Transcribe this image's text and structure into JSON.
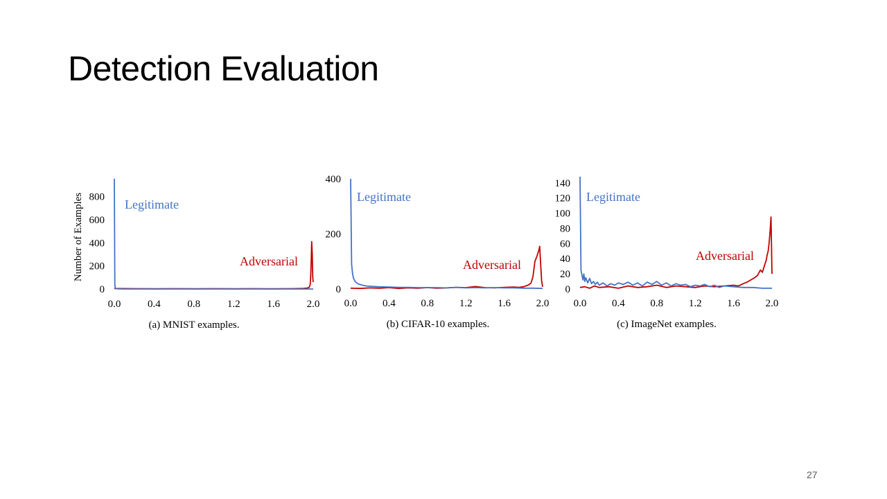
{
  "slide": {
    "title": "Detection Evaluation",
    "page_number": "27"
  },
  "chart_data": [
    {
      "type": "line",
      "caption": "(a) MNIST examples.",
      "ylabel": "Number of Examples",
      "xlabel": "",
      "xlim": [
        0.0,
        2.0
      ],
      "ylim": [
        0,
        960
      ],
      "x_ticks": [
        "0.0",
        "0.4",
        "0.8",
        "1.2",
        "1.6",
        "2.0"
      ],
      "y_ticks": [
        "0",
        "200",
        "400",
        "600",
        "800"
      ],
      "y_tick_values": [
        0,
        200,
        400,
        600,
        800
      ],
      "annotations": [
        {
          "text": "Legitimate",
          "series": "Legitimate"
        },
        {
          "text": "Adversarial",
          "series": "Adversarial"
        }
      ],
      "series": [
        {
          "name": "Legitimate",
          "color": "#4472c4",
          "x": [
            0.0,
            0.005,
            0.01,
            0.02,
            0.04,
            0.1,
            0.4,
            0.8,
            1.2,
            1.6,
            1.9,
            2.0
          ],
          "y": [
            955,
            40,
            8,
            3,
            1,
            0,
            0,
            0,
            0,
            0,
            0,
            0
          ]
        },
        {
          "name": "Adversarial",
          "color": "#c00000",
          "x": [
            0.0,
            0.2,
            0.4,
            0.6,
            0.8,
            1.0,
            1.2,
            1.4,
            1.6,
            1.8,
            1.9,
            1.94,
            1.96,
            1.97,
            1.975,
            1.98,
            1.985,
            1.99,
            1.995,
            2.0
          ],
          "y": [
            4,
            3,
            2,
            3,
            2,
            3,
            2,
            3,
            2,
            3,
            5,
            8,
            15,
            40,
            120,
            240,
            410,
            300,
            100,
            60
          ]
        }
      ]
    },
    {
      "type": "line",
      "caption": "(b) CIFAR-10 examples.",
      "ylabel": "",
      "xlabel": "",
      "xlim": [
        0.0,
        2.0
      ],
      "ylim": [
        0,
        400
      ],
      "x_ticks": [
        "0.0",
        "0.4",
        "0.8",
        "1.2",
        "1.6",
        "2.0"
      ],
      "y_ticks": [
        "0",
        "200",
        "400"
      ],
      "y_tick_values": [
        0,
        200,
        400
      ],
      "annotations": [
        {
          "text": "Legitimate",
          "series": "Legitimate"
        },
        {
          "text": "Adversarial",
          "series": "Adversarial"
        }
      ],
      "series": [
        {
          "name": "Legitimate",
          "color": "#4472c4",
          "x": [
            0.0,
            0.01,
            0.02,
            0.03,
            0.05,
            0.08,
            0.12,
            0.16,
            0.2,
            0.25,
            0.3,
            0.4,
            0.5,
            0.6,
            0.7,
            0.8,
            0.9,
            1.0,
            1.1,
            1.2,
            1.3,
            1.4,
            1.5,
            1.6,
            1.7,
            1.8,
            1.9,
            2.0
          ],
          "y": [
            400,
            90,
            55,
            38,
            26,
            18,
            14,
            11,
            10,
            9,
            8,
            7,
            6,
            6,
            5,
            5,
            5,
            4,
            6,
            4,
            5,
            4,
            5,
            4,
            4,
            3,
            3,
            2
          ]
        },
        {
          "name": "Adversarial",
          "color": "#c00000",
          "x": [
            0.0,
            0.1,
            0.2,
            0.3,
            0.4,
            0.5,
            0.6,
            0.7,
            0.8,
            0.9,
            1.0,
            1.1,
            1.2,
            1.3,
            1.4,
            1.5,
            1.6,
            1.7,
            1.75,
            1.8,
            1.85,
            1.88,
            1.9,
            1.92,
            1.94,
            1.96,
            1.97,
            1.98,
            1.99,
            2.0
          ],
          "y": [
            3,
            2,
            4,
            3,
            5,
            2,
            4,
            3,
            5,
            3,
            4,
            6,
            5,
            9,
            5,
            4,
            6,
            7,
            6,
            8,
            14,
            22,
            45,
            100,
            118,
            140,
            155,
            90,
            30,
            8
          ]
        }
      ]
    },
    {
      "type": "line",
      "caption": "(c) ImageNet examples.",
      "ylabel": "",
      "xlabel": "",
      "xlim": [
        0.0,
        2.0
      ],
      "ylim": [
        0,
        148
      ],
      "x_ticks": [
        "0.0",
        "0.4",
        "0.8",
        "1.2",
        "1.6",
        "2.0"
      ],
      "y_ticks": [
        "0",
        "20",
        "40",
        "60",
        "80",
        "100",
        "120",
        "140"
      ],
      "y_tick_values": [
        0,
        20,
        40,
        60,
        80,
        100,
        120,
        140
      ],
      "annotations": [
        {
          "text": "Legitimate",
          "series": "Legitimate"
        },
        {
          "text": "Adversarial",
          "series": "Adversarial"
        }
      ],
      "series": [
        {
          "name": "Legitimate",
          "color": "#4472c4",
          "x": [
            0.0,
            0.01,
            0.02,
            0.03,
            0.04,
            0.05,
            0.06,
            0.08,
            0.1,
            0.12,
            0.14,
            0.16,
            0.18,
            0.2,
            0.24,
            0.28,
            0.32,
            0.36,
            0.4,
            0.45,
            0.5,
            0.55,
            0.6,
            0.65,
            0.7,
            0.75,
            0.8,
            0.85,
            0.9,
            0.95,
            1.0,
            1.05,
            1.1,
            1.15,
            1.2,
            1.25,
            1.3,
            1.35,
            1.4,
            1.45,
            1.5,
            1.6,
            1.7,
            1.8,
            1.9,
            2.0
          ],
          "y": [
            148,
            25,
            18,
            12,
            20,
            10,
            15,
            8,
            14,
            7,
            10,
            6,
            9,
            5,
            8,
            4,
            7,
            5,
            8,
            6,
            9,
            5,
            8,
            4,
            9,
            6,
            10,
            5,
            8,
            4,
            7,
            5,
            6,
            3,
            5,
            4,
            6,
            3,
            5,
            2,
            4,
            3,
            2,
            2,
            1,
            1
          ]
        },
        {
          "name": "Adversarial",
          "color": "#c00000",
          "x": [
            0.0,
            0.05,
            0.1,
            0.15,
            0.2,
            0.3,
            0.4,
            0.5,
            0.6,
            0.7,
            0.8,
            0.9,
            1.0,
            1.1,
            1.2,
            1.3,
            1.4,
            1.5,
            1.6,
            1.65,
            1.7,
            1.74,
            1.78,
            1.82,
            1.85,
            1.88,
            1.9,
            1.92,
            1.94,
            1.95,
            1.96,
            1.97,
            1.98,
            1.99,
            1.995,
            2.0
          ],
          "y": [
            2,
            3,
            1,
            4,
            2,
            3,
            1,
            4,
            2,
            3,
            5,
            2,
            4,
            3,
            2,
            4,
            3,
            4,
            5,
            4,
            7,
            9,
            12,
            15,
            18,
            25,
            22,
            30,
            38,
            45,
            50,
            60,
            75,
            95,
            60,
            20
          ]
        }
      ]
    }
  ]
}
